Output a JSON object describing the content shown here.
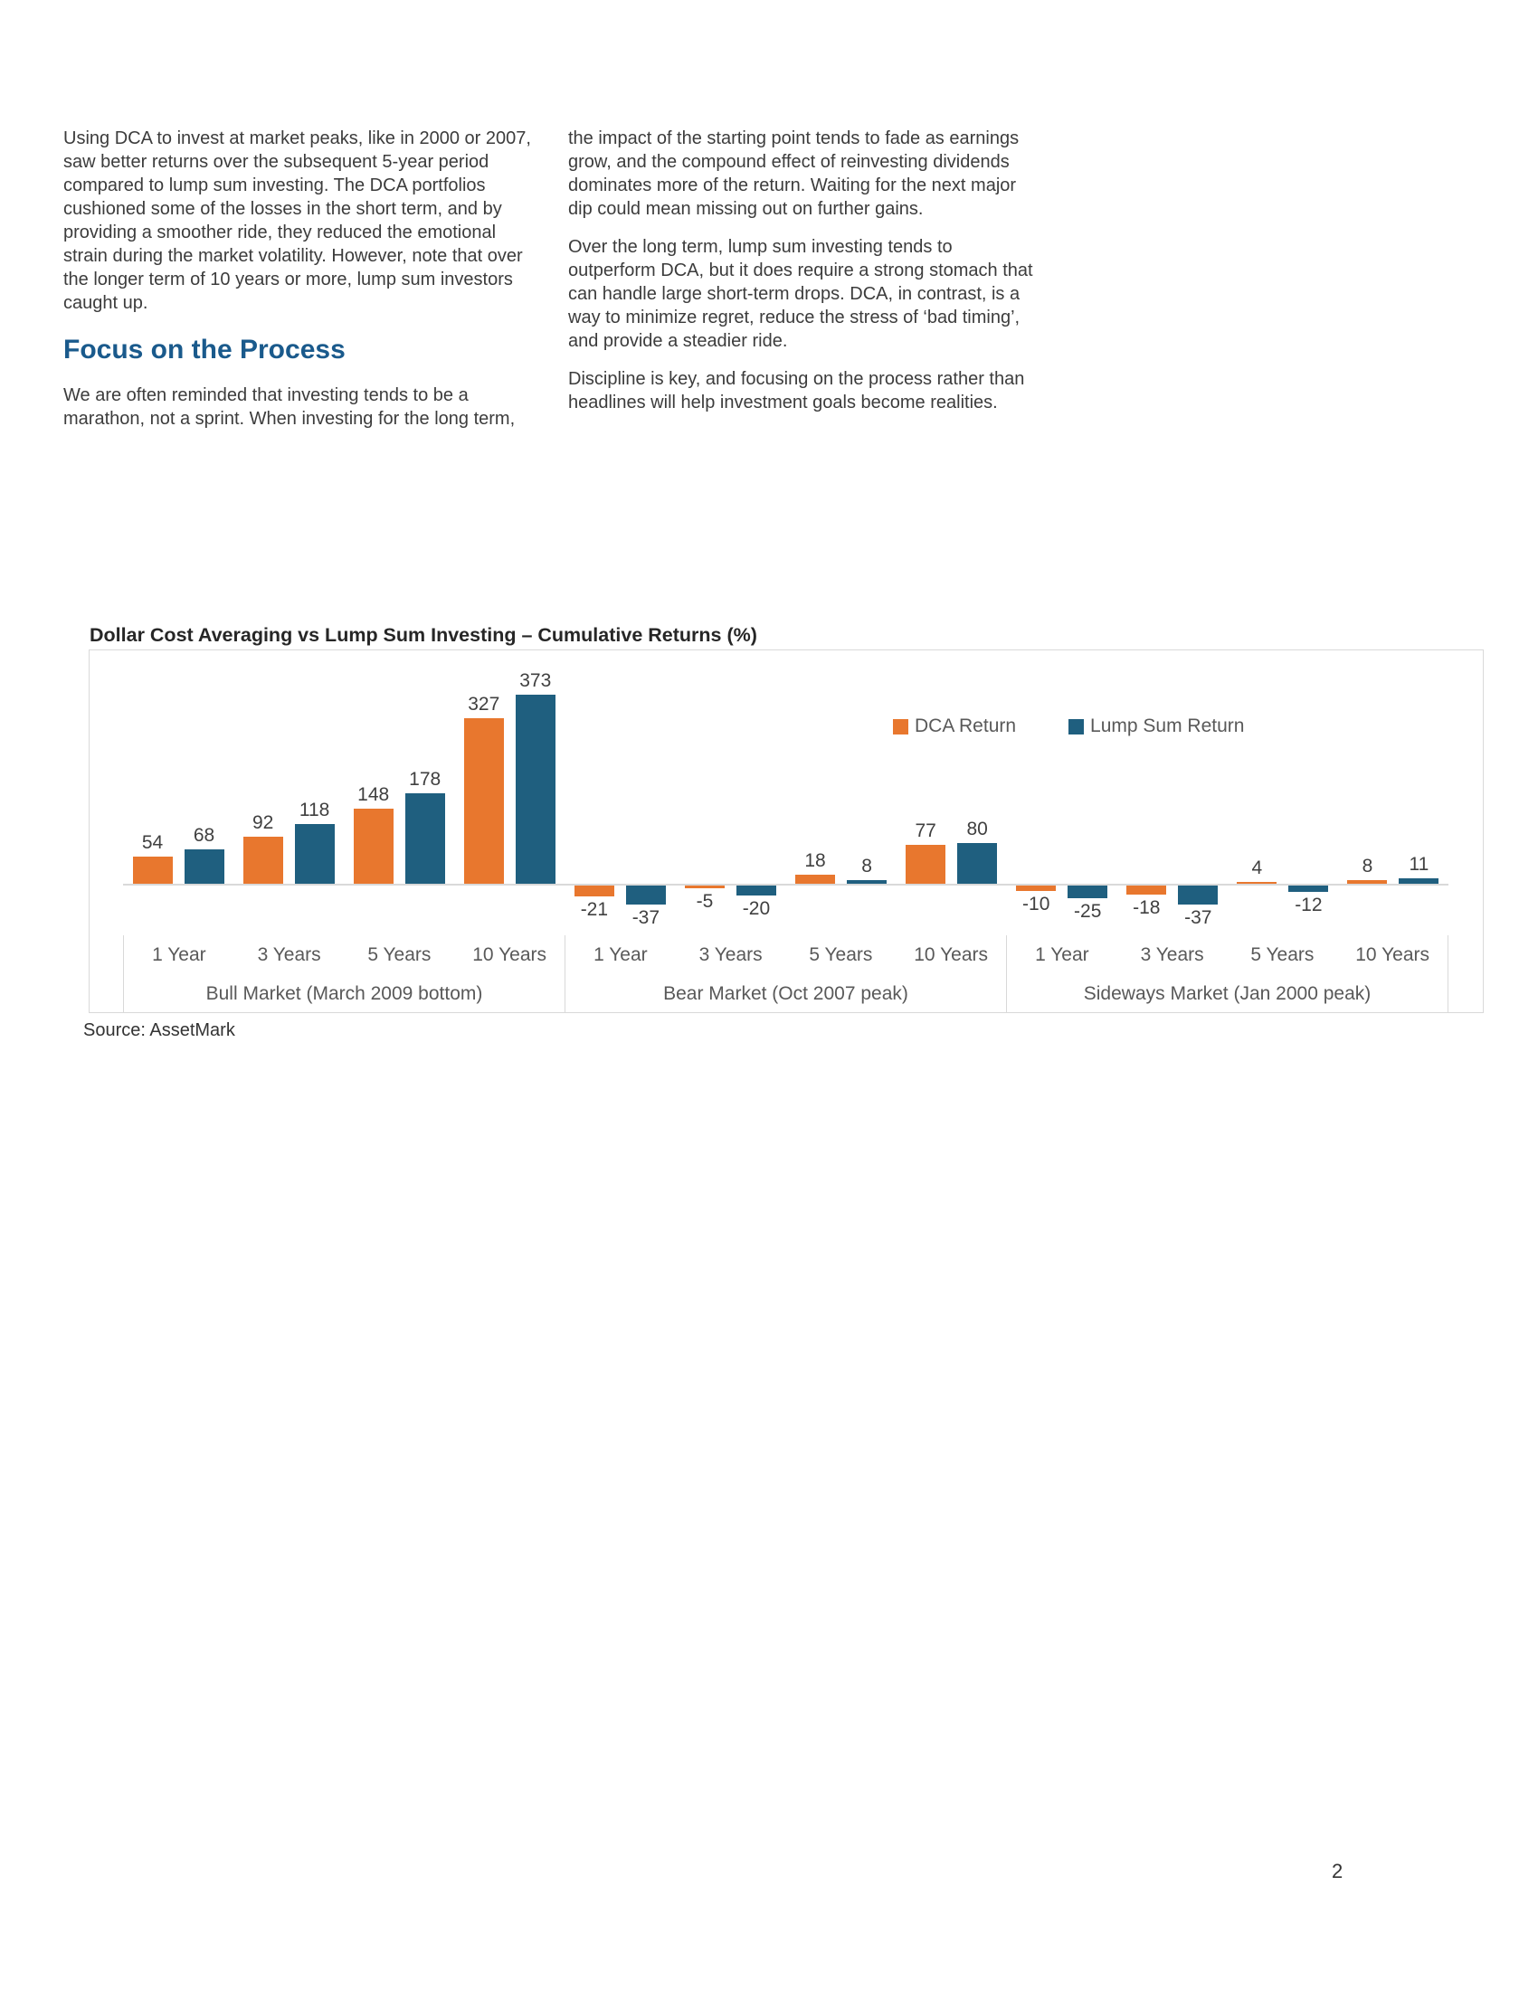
{
  "page": {
    "number": "2"
  },
  "article": {
    "left_column": {
      "para1_lines": [
        "Using DCA to invest at market peaks, like in 2000 or 2007,",
        "saw better returns over the subsequent 5-year period",
        "compared to lump sum investing. The DCA portfolios",
        "cushioned some of the losses in the short term, and by",
        "providing a smoother ride, they reduced the emotional",
        "strain during the market volatility. However, note that over",
        "the longer term of 10 years or more, lump sum investors",
        "caught up."
      ],
      "heading": "Focus on the Process",
      "para2_lines": [
        "We are often reminded that investing tends to be a",
        "marathon, not a sprint. When investing for the long term,"
      ]
    },
    "right_column": {
      "para1_lines": [
        "the impact of the starting point tends to fade as earnings",
        "grow, and the compound effect of reinvesting dividends",
        "dominates more of the return. Waiting for the next major",
        "dip could mean missing out on further gains."
      ],
      "para2_lines": [
        "Over the long term, lump sum investing tends to",
        "outperform DCA, but it does require a strong stomach that",
        "can handle large short-term drops. DCA, in contrast, is a",
        "way to minimize regret, reduce the stress of ‘bad timing’,",
        "and provide a steadier ride."
      ],
      "para3_lines": [
        "Discipline is key, and focusing on the process rather than",
        "headlines will help investment goals become realities."
      ]
    }
  },
  "chart": {
    "title": "Dollar Cost Averaging vs Lump Sum Investing – Cumulative Returns (%)",
    "source": "Source: AssetMark",
    "legend": [
      {
        "label": "DCA Return",
        "color": "#e8772e"
      },
      {
        "label": "Lump Sum Return",
        "color": "#1f5f7f"
      }
    ]
  },
  "chart_data": {
    "type": "bar",
    "title": "Dollar Cost Averaging vs Lump Sum Investing – Cumulative Returns (%)",
    "ylim": [
      -60,
      420
    ],
    "grid": false,
    "legend_position": "top-right",
    "colors": {
      "dca": "#e8772e",
      "lump_sum": "#1f5f7f"
    },
    "groups": [
      {
        "label": "Bull Market (March 2009 bottom)",
        "categories": [
          "1 Year",
          "3 Years",
          "5 Years",
          "10 Years"
        ],
        "series": [
          {
            "name": "DCA Return",
            "values": [
              54,
              92,
              148,
              327
            ]
          },
          {
            "name": "Lump Sum Return",
            "values": [
              68,
              118,
              178,
              373
            ]
          }
        ]
      },
      {
        "label": "Bear Market (Oct 2007 peak)",
        "categories": [
          "1 Year",
          "3 Years",
          "5 Years",
          "10 Years"
        ],
        "series": [
          {
            "name": "DCA Return",
            "values": [
              -21,
              -5,
              18,
              77
            ]
          },
          {
            "name": "Lump Sum Return",
            "values": [
              -37,
              -20,
              8,
              80
            ]
          }
        ]
      },
      {
        "label": "Sideways Market (Jan 2000 peak)",
        "categories": [
          "1 Year",
          "3 Years",
          "5 Years",
          "10 Years"
        ],
        "series": [
          {
            "name": "DCA Return",
            "values": [
              -10,
              -18,
              4,
              8
            ]
          },
          {
            "name": "Lump Sum Return",
            "values": [
              -25,
              -37,
              -12,
              11
            ]
          }
        ]
      }
    ]
  }
}
